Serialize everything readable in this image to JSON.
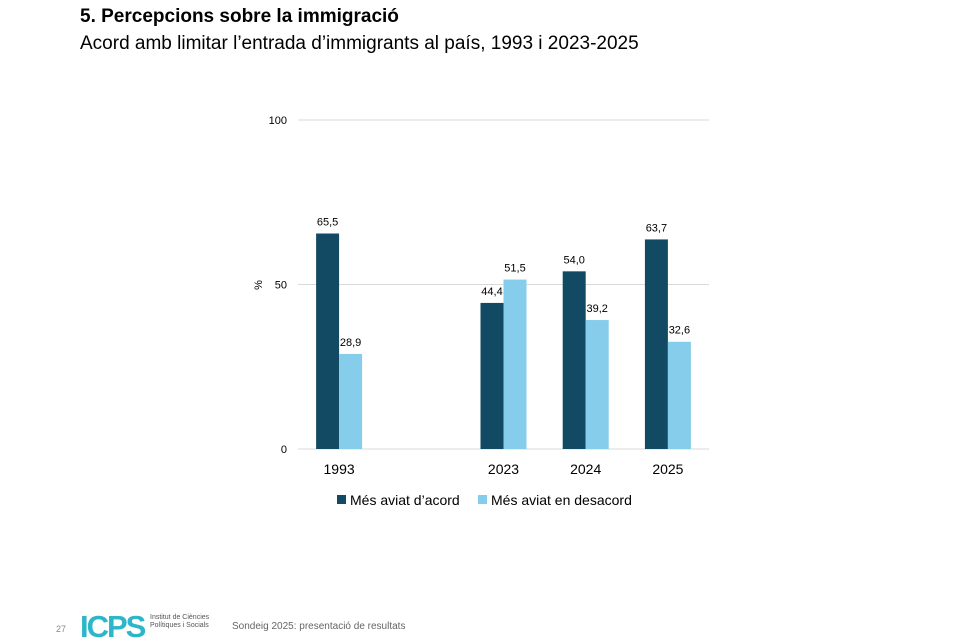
{
  "header": {
    "title": "5. Percepcions sobre la immigració",
    "subtitle": "Acord amb limitar l’entrada d’immigrants al país, 1993 i 2023-2025"
  },
  "chart_data": {
    "type": "bar",
    "title": "",
    "xlabel": "",
    "ylabel": "%",
    "ylim": [
      0,
      100
    ],
    "yticks": [
      0,
      50,
      100
    ],
    "grid": true,
    "legend_position": "bottom",
    "categories": [
      "1993",
      "2023",
      "2024",
      "2025"
    ],
    "series": [
      {
        "name": "Més aviat d’acord",
        "values": [
          65.5,
          44.4,
          54.0,
          63.7
        ],
        "labels": [
          "65,5",
          "44,4",
          "54,0",
          "63,7"
        ],
        "color": "#134a63"
      },
      {
        "name": "Més aviat en desacord",
        "values": [
          28.9,
          51.5,
          39.2,
          32.6
        ],
        "labels": [
          "28,9",
          "51,5",
          "39,2",
          "32,6"
        ],
        "color": "#86cdeb"
      }
    ]
  },
  "footer": {
    "page": "27",
    "logo": "ICPS",
    "logo_text": "Institut de Ciències Polítiques i Socials",
    "text": "Sondeig 2025: presentació de resultats"
  }
}
